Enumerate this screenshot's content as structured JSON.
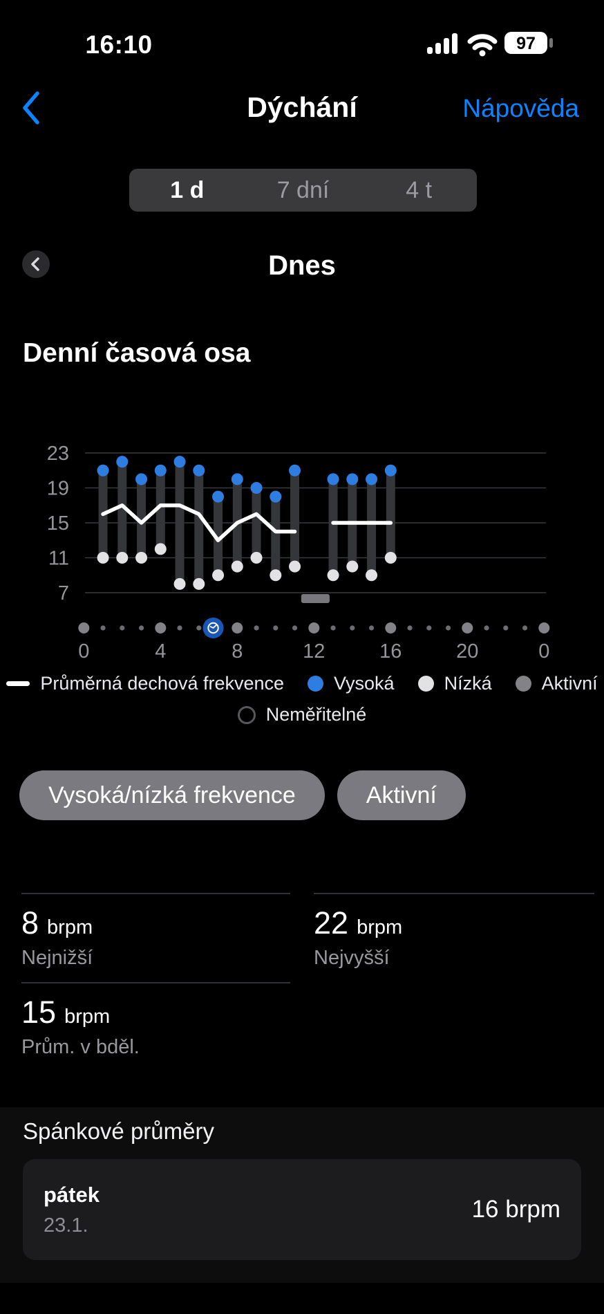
{
  "status_bar": {
    "time": "16:10",
    "battery_percent": "97"
  },
  "nav": {
    "title": "Dýchání",
    "help_link": "Nápověda"
  },
  "range_selector": {
    "options": [
      {
        "label": "1 d",
        "selected": true
      },
      {
        "label": "7 dní",
        "selected": false
      },
      {
        "label": "4 t",
        "selected": false
      }
    ]
  },
  "date_nav": {
    "current": "Dnes"
  },
  "chart_data": {
    "type": "range-bar+line",
    "title": "Denní časová osa",
    "unit": "brpm",
    "ylim": [
      7,
      23
    ],
    "yticks": [
      23,
      19,
      15,
      11,
      7
    ],
    "xticks": [
      {
        "h": 0,
        "label": "0"
      },
      {
        "h": 4,
        "label": "4"
      },
      {
        "h": 8,
        "label": "8"
      },
      {
        "h": 12,
        "label": "12"
      },
      {
        "h": 16,
        "label": "16"
      },
      {
        "h": 20,
        "label": "20"
      },
      {
        "h": 24,
        "label": "0"
      }
    ],
    "bars": [
      {
        "h": 1,
        "low": 11,
        "high": 21
      },
      {
        "h": 2,
        "low": 11,
        "high": 22
      },
      {
        "h": 3,
        "low": 11,
        "high": 20
      },
      {
        "h": 4,
        "low": 12,
        "high": 21
      },
      {
        "h": 5,
        "low": 8,
        "high": 22
      },
      {
        "h": 6,
        "low": 8,
        "high": 21
      },
      {
        "h": 7,
        "low": 9,
        "high": 18
      },
      {
        "h": 8,
        "low": 10,
        "high": 20
      },
      {
        "h": 9,
        "low": 11,
        "high": 19
      },
      {
        "h": 10,
        "low": 9,
        "high": 18
      },
      {
        "h": 11,
        "low": 10,
        "high": 21
      },
      {
        "h": 13,
        "low": 9,
        "high": 20
      },
      {
        "h": 14,
        "low": 10,
        "high": 20
      },
      {
        "h": 15,
        "low": 9,
        "high": 20
      },
      {
        "h": 16,
        "low": 11,
        "high": 21
      }
    ],
    "avg_line_segments": [
      [
        [
          1,
          16
        ],
        [
          2,
          17
        ],
        [
          3,
          15
        ],
        [
          4,
          17
        ],
        [
          5,
          17
        ],
        [
          6,
          16
        ],
        [
          7,
          13
        ],
        [
          8,
          15
        ],
        [
          9,
          16
        ],
        [
          10,
          14
        ],
        [
          11,
          14
        ]
      ],
      [
        [
          13,
          15
        ],
        [
          16,
          15
        ]
      ]
    ],
    "active_periods": [
      {
        "from": 11.55,
        "to": 12.6
      }
    ],
    "timeline": {
      "hours": 24,
      "major_every": 4,
      "selected_hour": 7,
      "selected_icon": "clock"
    },
    "colors": {
      "high": "#2e7ee2",
      "low": "#e2e2e5",
      "active": "#828287",
      "avg_line": "#ffffff",
      "selected": "#1a57b4",
      "bar": "#35363a",
      "grid": "#3a3b3f",
      "tick_text": "#95959a"
    }
  },
  "legend": {
    "avg": "Průměrná dechová frekvence",
    "high": "Vysoká",
    "low": "Nízká",
    "active": "Aktivní",
    "unmeasurable": "Neměřitelné"
  },
  "filters": [
    {
      "label": "Vysoká/nízká frekvence"
    },
    {
      "label": "Aktivní"
    }
  ],
  "stats": [
    {
      "value": "8",
      "unit": "brpm",
      "label": "Nejnižší"
    },
    {
      "value": "22",
      "unit": "brpm",
      "label": "Nejvyšší"
    },
    {
      "value": "15",
      "unit": "brpm",
      "label": "Prům. v bděl."
    }
  ],
  "sleep": {
    "heading": "Spánkové průměry",
    "entries": [
      {
        "day": "pátek",
        "date": "23.1.",
        "value": "16 brpm"
      }
    ]
  }
}
